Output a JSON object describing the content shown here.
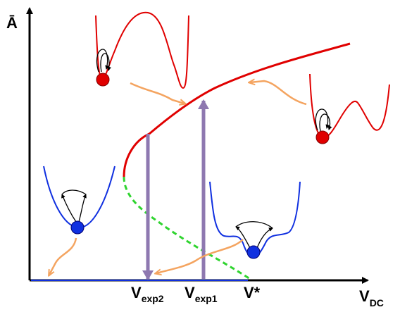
{
  "axes": {
    "y_label": "Ā",
    "x_label_main": "V",
    "x_label_sub": "DC"
  },
  "markers": {
    "vexp2_main": "V",
    "vexp2_sub": "exp2",
    "vexp1_main": "V",
    "vexp1_sub": "exp1",
    "vstar": "V*"
  },
  "colors": {
    "stable_branch": "#e00000",
    "unstable_branch": "#2fd42f",
    "low_branch": "#1030e0",
    "transition_arrow": "#8e78b0",
    "state_arrow": "#f4a460",
    "potential_high": "#e00000",
    "potential_low": "#1030e0",
    "axis": "#000000"
  },
  "insets": [
    {
      "name": "high-state-double-well",
      "color": "red"
    },
    {
      "name": "high-state-right-well",
      "color": "red"
    },
    {
      "name": "low-state-single-well",
      "color": "blue"
    },
    {
      "name": "low-state-double-well",
      "color": "blue"
    }
  ]
}
